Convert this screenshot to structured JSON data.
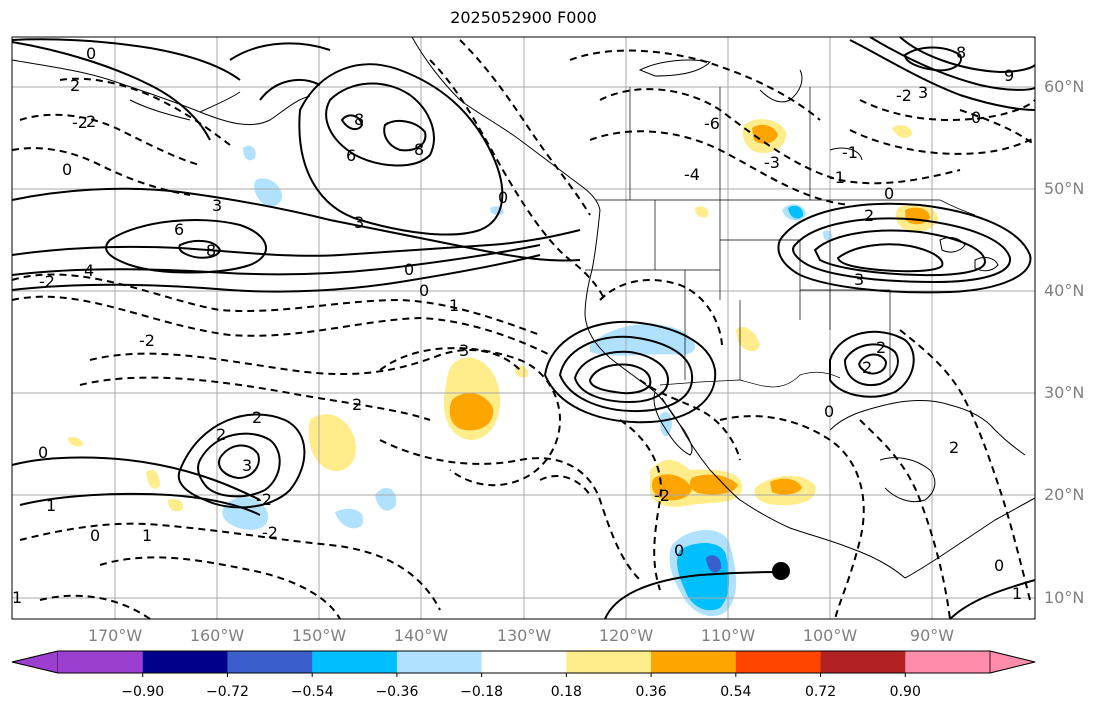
{
  "title": "2025052900 F000",
  "lat_labels": [
    "60°N",
    "50°N",
    "40°N",
    "30°N",
    "20°N",
    "10°N"
  ],
  "lon_labels": [
    "170°W",
    "160°W",
    "150°W",
    "140°W",
    "130°W",
    "120°W",
    "110°W",
    "100°W",
    "90°W"
  ],
  "colorbar": {
    "tick_labels": [
      "−0.90",
      "−0.72",
      "−0.54",
      "−0.36",
      "−0.18",
      "0.18",
      "0.36",
      "0.54",
      "0.72",
      "0.90"
    ],
    "colors": [
      "#9b3fd0",
      "#00008b",
      "#3a5fcd",
      "#00bfff",
      "#b0e2ff",
      "#ffffff",
      "#ffec8b",
      "#ffa500",
      "#ff4500",
      "#b22222",
      "#ff8cab"
    ]
  },
  "contour_labels": [
    "0",
    "2",
    "-2",
    "3",
    "6",
    "8",
    "-6",
    "-4",
    "-3",
    "-1",
    "1",
    "4",
    "9"
  ],
  "map_colors": {
    "frame": "#000000",
    "grid": "#a9a9a9",
    "coast": "#000000",
    "positive_fill": "#ffec8b",
    "negative_fill": "#b0e2ff"
  }
}
